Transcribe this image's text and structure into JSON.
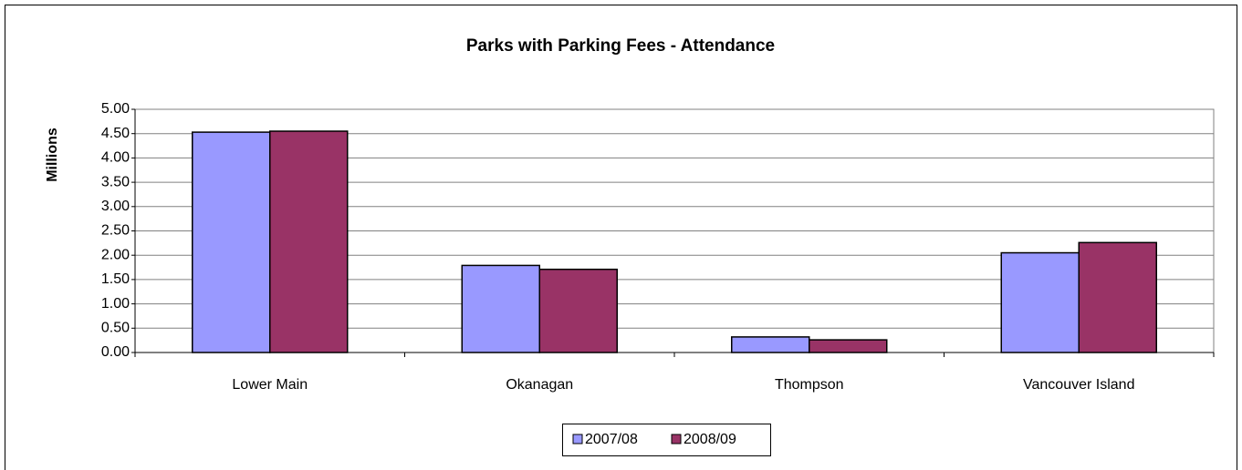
{
  "chart_data": {
    "type": "bar",
    "title": "Parks with Parking Fees - Attendance",
    "y_label": "Millions",
    "categories": [
      "Lower Main",
      "Okanagan",
      "Thompson",
      "Vancouver Island"
    ],
    "series": [
      {
        "name": "2007/08",
        "color": "#9999ff",
        "values": [
          4.53,
          1.79,
          0.32,
          2.05
        ]
      },
      {
        "name": "2008/09",
        "color": "#993366",
        "values": [
          4.55,
          1.71,
          0.26,
          2.26
        ]
      }
    ],
    "ylim": [
      0,
      5
    ],
    "yticks": [
      {
        "value": 0,
        "label": "0.00"
      },
      {
        "value": 0.5,
        "label": "0.50"
      },
      {
        "value": 1,
        "label": "1.00"
      },
      {
        "value": 1.5,
        "label": "1.50"
      },
      {
        "value": 2,
        "label": "2.00"
      },
      {
        "value": 2.5,
        "label": "2.50"
      },
      {
        "value": 3,
        "label": "3.00"
      },
      {
        "value": 3.5,
        "label": "3.50"
      },
      {
        "value": 4,
        "label": "4.00"
      },
      {
        "value": 4.5,
        "label": "4.50"
      },
      {
        "value": 5,
        "label": "5.00"
      }
    ],
    "grid": true,
    "legend": "bottom"
  }
}
